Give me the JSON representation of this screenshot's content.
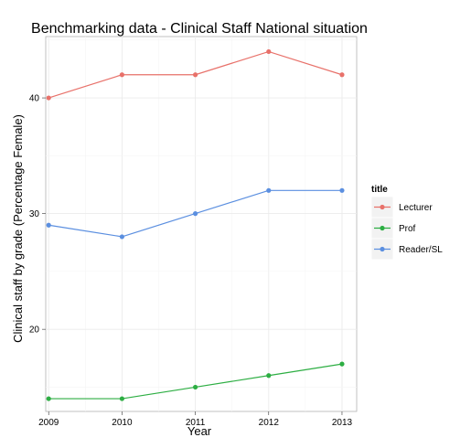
{
  "chart_data": {
    "type": "line",
    "title": "Benchmarking data - Clinical Staff National situation",
    "xlabel": "Year",
    "ylabel": "Clinical staff by grade (Percentage Female)",
    "x": [
      2009,
      2010,
      2011,
      2012,
      2013
    ],
    "x_ticks": [
      "2009",
      "2010",
      "2011",
      "2012",
      "2013"
    ],
    "y_ticks": [
      "20",
      "30",
      "40"
    ],
    "xlim": [
      2008.96,
      2013.2
    ],
    "ylim": [
      12.9,
      45.3
    ],
    "grid": true,
    "legend": {
      "title": "title",
      "placement": "right"
    },
    "series": [
      {
        "name": "Lecturer",
        "color": "#E8716A",
        "values": [
          40,
          42,
          42,
          44,
          42
        ]
      },
      {
        "name": "Prof",
        "color": "#2DAE43",
        "values": [
          14,
          14,
          15,
          16,
          17
        ]
      },
      {
        "name": "Reader/SL",
        "color": "#5B8FE0",
        "values": [
          29,
          28,
          30,
          32,
          32
        ]
      }
    ]
  }
}
